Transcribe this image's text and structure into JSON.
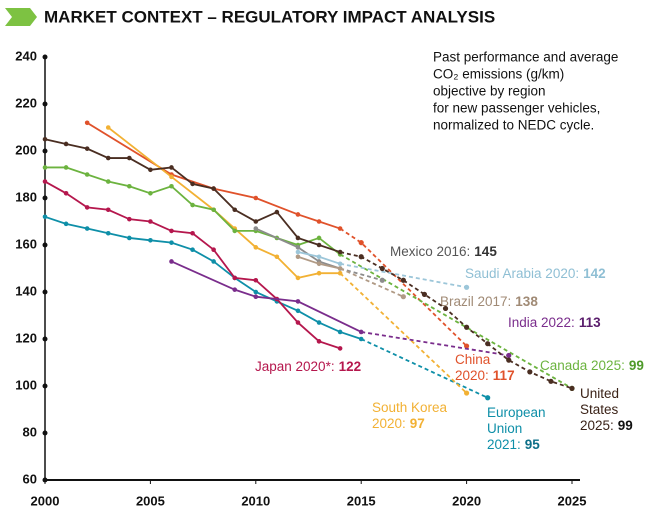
{
  "chart_data": {
    "type": "line",
    "title": "MARKET CONTEXT – REGULATORY IMPACT ANALYSIS",
    "subtitle": [
      "Past performance and average",
      "CO₂ emissions (g/km)",
      "objective by region",
      "for new passenger vehicles,",
      "normalized to NEDC cycle."
    ],
    "xlim": [
      2000,
      2025
    ],
    "xticks": [
      2000,
      2005,
      2010,
      2015,
      2020,
      2025
    ],
    "ylim": [
      60,
      240
    ],
    "yticks": [
      60,
      80,
      100,
      120,
      140,
      160,
      180,
      200,
      220,
      240
    ],
    "series": [
      {
        "label": [
          "European",
          "Union",
          "2021:"
        ],
        "color": "#0e8fa8",
        "x": [
          2000,
          2001,
          2002,
          2003,
          2004,
          2005,
          2006,
          2007,
          2008,
          2009,
          2010,
          2011,
          2012,
          2013,
          2014,
          2015
        ],
        "values": [
          172,
          169,
          167,
          165,
          163,
          162,
          161,
          158,
          153,
          146,
          140,
          136,
          132,
          127,
          123,
          120
        ],
        "projection_x": [
          2021
        ],
        "projection_values": [
          95
        ]
      },
      {
        "label": [
          "Japan 2020*:"
        ],
        "color": "#b5174d",
        "x": [
          2000,
          2001,
          2002,
          2003,
          2004,
          2005,
          2006,
          2007,
          2008,
          2009,
          2010,
          2011,
          2012,
          2013,
          2014
        ],
        "values": [
          187,
          182,
          176,
          175,
          171,
          170,
          166,
          165,
          158,
          146,
          145,
          137,
          127,
          119,
          116
        ],
        "target": 122
      },
      {
        "label": [
          "China",
          "2020:"
        ],
        "color": "#e0522b",
        "x": [
          2002,
          2006,
          2008,
          2010,
          2012,
          2013,
          2014
        ],
        "values": [
          212,
          190,
          184,
          180,
          173,
          170,
          167
        ],
        "projection_x": [
          2015,
          2020
        ],
        "projection_values": [
          161,
          117
        ]
      },
      {
        "label": [
          "South Korea",
          "2020:"
        ],
        "color": "#f2b134",
        "x": [
          2003,
          2006,
          2008,
          2009,
          2010,
          2011,
          2012,
          2013,
          2014
        ],
        "values": [
          210,
          189,
          175,
          167,
          159,
          155,
          146,
          148,
          148
        ],
        "projection_x": [
          2020
        ],
        "projection_values": [
          97
        ]
      },
      {
        "label": [
          "Canada 2025:"
        ],
        "color": "#6cb33f",
        "x": [
          2000,
          2001,
          2002,
          2003,
          2004,
          2005,
          2006,
          2007,
          2008,
          2009,
          2010,
          2011,
          2012,
          2013,
          2014
        ],
        "values": [
          193,
          193,
          190,
          187,
          185,
          182,
          185,
          177,
          175,
          166,
          166,
          163,
          160,
          163,
          156
        ],
        "projection_x": [
          2025
        ],
        "projection_values": [
          99
        ]
      },
      {
        "label": [
          "Mexico 2016:"
        ],
        "color": "#8c8c8c",
        "x": [
          2010,
          2012,
          2013,
          2014
        ],
        "values": [
          167,
          159,
          153,
          150
        ],
        "projection_x": [
          2016
        ],
        "projection_values": [
          145
        ]
      },
      {
        "label": [
          "Saudi Arabia 2020:"
        ],
        "color": "#9cc6d9",
        "x": [
          2012,
          2013,
          2014
        ],
        "values": [
          157,
          155,
          152
        ],
        "projection_x": [
          2020
        ],
        "projection_values": [
          142
        ]
      },
      {
        "label": [
          "Brazil 2017:"
        ],
        "color": "#b09a85",
        "x": [
          2012,
          2013,
          2014
        ],
        "values": [
          155,
          152,
          150
        ],
        "projection_x": [
          2017
        ],
        "projection_values": [
          138
        ]
      },
      {
        "label": [
          "India 2022:"
        ],
        "color": "#7a2d8c",
        "x": [
          2006,
          2009,
          2010,
          2012,
          2015
        ],
        "values": [
          153,
          141,
          138,
          136,
          123
        ],
        "projection_x": [
          2022
        ],
        "projection_values": [
          113
        ]
      },
      {
        "label": [
          "United",
          "States",
          "2025:"
        ],
        "color": "#4a2e22",
        "x": [
          2000,
          2001,
          2002,
          2003,
          2004,
          2005,
          2006,
          2007,
          2008,
          2009,
          2010,
          2011,
          2012,
          2013,
          2014
        ],
        "values": [
          205,
          203,
          201,
          197,
          197,
          192,
          193,
          186,
          184,
          175,
          170,
          174,
          163,
          160,
          157
        ],
        "projection_x": [
          2015,
          2016,
          2017,
          2018,
          2019,
          2020,
          2021,
          2022,
          2023,
          2024,
          2025
        ],
        "projection_values": [
          155,
          150,
          145,
          139,
          133,
          125,
          118,
          111,
          106,
          102,
          99
        ]
      }
    ]
  }
}
